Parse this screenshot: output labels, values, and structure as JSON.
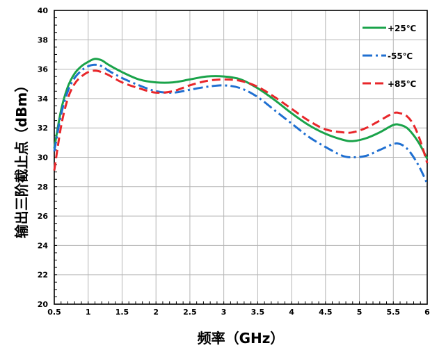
{
  "chart_data": {
    "type": "line",
    "xlabel": "频率（GHz）",
    "ylabel": "输出三阶截止点（dBm）",
    "xlim": [
      0.5,
      6
    ],
    "ylim": [
      20,
      40
    ],
    "x_ticks": [
      0.5,
      1,
      1.5,
      2,
      2.5,
      3,
      3.5,
      4,
      4.5,
      5,
      5.5,
      6
    ],
    "x_tick_labels": [
      "0.5",
      "1",
      "1.5",
      "2",
      "2.5",
      "3",
      "3.5",
      "4",
      "4.5",
      "5",
      "5.5",
      "6"
    ],
    "y_ticks": [
      20,
      22,
      24,
      26,
      28,
      30,
      32,
      34,
      36,
      38,
      40
    ],
    "y_tick_labels": [
      "20",
      "22",
      "24",
      "26",
      "28",
      "30",
      "32",
      "34",
      "36",
      "38",
      "40"
    ],
    "grid": true,
    "legend_position": "top-right",
    "series": [
      {
        "name": "+25℃",
        "color": "#1aa34a",
        "style": "solid",
        "x": [
          0.5,
          0.6,
          0.7,
          0.8,
          0.9,
          1.0,
          1.1,
          1.2,
          1.3,
          1.5,
          1.75,
          2.0,
          2.25,
          2.5,
          2.75,
          3.0,
          3.25,
          3.5,
          3.75,
          4.0,
          4.25,
          4.5,
          4.75,
          4.9,
          5.1,
          5.3,
          5.5,
          5.6,
          5.7,
          5.8,
          5.9,
          6.0
        ],
        "values": [
          30.6,
          33.2,
          34.8,
          35.7,
          36.2,
          36.5,
          36.7,
          36.6,
          36.3,
          35.8,
          35.3,
          35.1,
          35.1,
          35.3,
          35.5,
          35.5,
          35.3,
          34.7,
          33.9,
          33.0,
          32.2,
          31.6,
          31.2,
          31.1,
          31.3,
          31.7,
          32.2,
          32.2,
          32.0,
          31.5,
          30.8,
          29.9
        ]
      },
      {
        "name": "-55℃",
        "color": "#1f6fd1",
        "style": "dashdot",
        "x": [
          0.5,
          0.6,
          0.7,
          0.8,
          0.9,
          1.0,
          1.1,
          1.2,
          1.3,
          1.5,
          1.75,
          2.0,
          2.25,
          2.5,
          2.75,
          3.0,
          3.25,
          3.5,
          3.75,
          4.0,
          4.25,
          4.5,
          4.75,
          4.9,
          5.1,
          5.3,
          5.5,
          5.6,
          5.7,
          5.8,
          5.9,
          6.0
        ],
        "values": [
          30.4,
          32.9,
          34.5,
          35.4,
          35.9,
          36.2,
          36.3,
          36.2,
          35.9,
          35.4,
          34.9,
          34.5,
          34.4,
          34.6,
          34.8,
          34.9,
          34.7,
          34.1,
          33.2,
          32.3,
          31.4,
          30.7,
          30.1,
          30.0,
          30.1,
          30.5,
          30.9,
          30.9,
          30.6,
          30.0,
          29.2,
          28.2
        ]
      },
      {
        "name": "+85℃",
        "color": "#e8262a",
        "style": "dashed",
        "x": [
          0.5,
          0.6,
          0.7,
          0.8,
          0.9,
          1.0,
          1.1,
          1.2,
          1.3,
          1.5,
          1.75,
          2.0,
          2.25,
          2.5,
          2.75,
          3.0,
          3.25,
          3.5,
          3.75,
          4.0,
          4.25,
          4.5,
          4.75,
          4.9,
          5.1,
          5.3,
          5.5,
          5.6,
          5.7,
          5.8,
          5.9,
          6.0
        ],
        "values": [
          29.1,
          32.1,
          34.0,
          35.0,
          35.5,
          35.8,
          35.9,
          35.8,
          35.6,
          35.1,
          34.7,
          34.4,
          34.5,
          34.9,
          35.2,
          35.3,
          35.2,
          34.8,
          34.1,
          33.3,
          32.5,
          31.9,
          31.7,
          31.7,
          32.0,
          32.5,
          33.0,
          33.0,
          32.8,
          32.2,
          31.1,
          29.6
        ]
      }
    ]
  }
}
